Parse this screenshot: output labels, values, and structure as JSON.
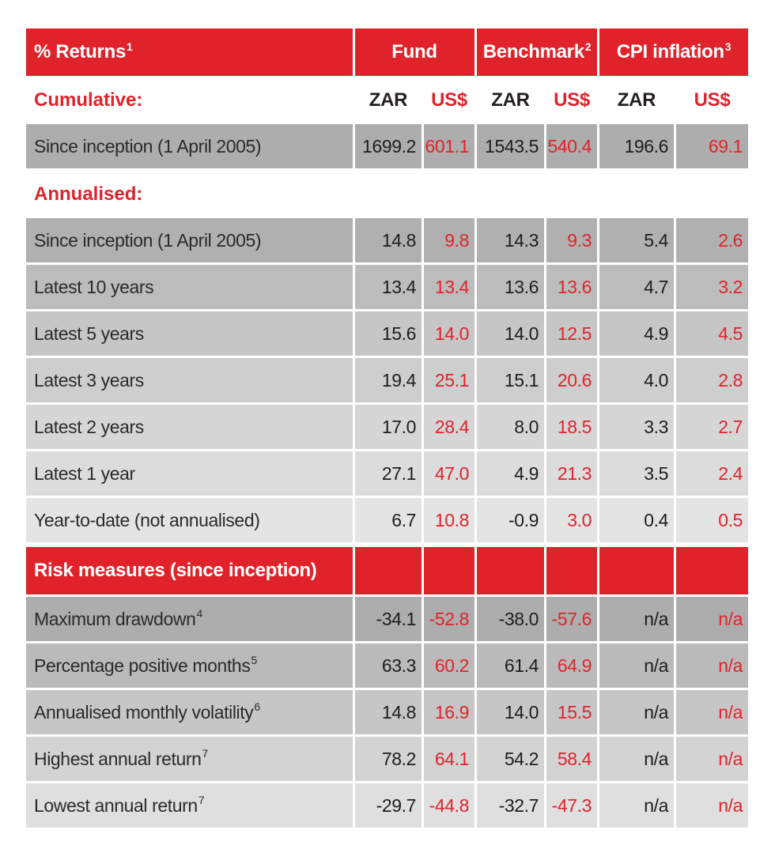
{
  "colors": {
    "accent_red": "#e0232b",
    "text_dark": "#231f20",
    "row_darkest": "#adadad",
    "row_lightest": "#e4e4e4"
  },
  "header": {
    "returns": {
      "text": "% Returns",
      "sup": "1"
    },
    "groups": [
      {
        "text": "Fund",
        "sup": ""
      },
      {
        "text": "Benchmark",
        "sup": "2"
      },
      {
        "text": "CPI inflation",
        "sup": "3"
      }
    ]
  },
  "sections": {
    "cumulative_label": "Cumulative:",
    "annualised_label": "Annualised:",
    "risk_label": "Risk measures (since inception)"
  },
  "currency_headers": [
    "ZAR",
    "US$",
    "ZAR",
    "US$",
    "ZAR",
    "US$"
  ],
  "rows": [
    {
      "label": "Since inception (1 April 2005)",
      "sup": "",
      "bg": "#adadad",
      "values": [
        "1699.2",
        "601.1",
        "1543.5",
        "540.4",
        "196.6",
        "69.1"
      ]
    },
    {
      "label": "Since inception (1 April 2005)",
      "sup": "",
      "bg": "#b0b0b0",
      "values": [
        "14.8",
        "9.8",
        "14.3",
        "9.3",
        "5.4",
        "2.6"
      ]
    },
    {
      "label": "Latest 10 years",
      "sup": "",
      "bg": "#bcbcbc",
      "values": [
        "13.4",
        "13.4",
        "13.6",
        "13.6",
        "4.7",
        "3.2"
      ]
    },
    {
      "label": "Latest 5 years",
      "sup": "",
      "bg": "#c6c6c6",
      "values": [
        "15.6",
        "14.0",
        "14.0",
        "12.5",
        "4.9",
        "4.5"
      ]
    },
    {
      "label": "Latest 3 years",
      "sup": "",
      "bg": "#cecece",
      "values": [
        "19.4",
        "25.1",
        "15.1",
        "20.6",
        "4.0",
        "2.8"
      ]
    },
    {
      "label": "Latest 2 years",
      "sup": "",
      "bg": "#d6d6d6",
      "values": [
        "17.0",
        "28.4",
        "8.0",
        "18.5",
        "3.3",
        "2.7"
      ]
    },
    {
      "label": "Latest 1 year",
      "sup": "",
      "bg": "#dcdcdc",
      "values": [
        "27.1",
        "47.0",
        "4.9",
        "21.3",
        "3.5",
        "2.4"
      ]
    },
    {
      "label": "Year-to-date (not annualised)",
      "sup": "",
      "bg": "#e4e4e4",
      "values": [
        "6.7",
        "10.8",
        "-0.9",
        "3.0",
        "0.4",
        "0.5"
      ]
    },
    {
      "label": "Maximum drawdown",
      "sup": "4",
      "bg": "#adadad",
      "values": [
        "-34.1",
        "-52.8",
        "-38.0",
        "-57.6",
        "n/a",
        "n/a"
      ]
    },
    {
      "label": "Percentage positive months",
      "sup": "5",
      "bg": "#bababa",
      "values": [
        "63.3",
        "60.2",
        "61.4",
        "64.9",
        "n/a",
        "n/a"
      ]
    },
    {
      "label": "Annualised monthly volatility",
      "sup": "6",
      "bg": "#c6c6c6",
      "values": [
        "14.8",
        "16.9",
        "14.0",
        "15.5",
        "n/a",
        "n/a"
      ]
    },
    {
      "label": "Highest annual return",
      "sup": "7",
      "bg": "#d3d3d3",
      "values": [
        "78.2",
        "64.1",
        "54.2",
        "58.4",
        "n/a",
        "n/a"
      ]
    },
    {
      "label": "Lowest annual return",
      "sup": "7",
      "bg": "#dfdfdf",
      "values": [
        "-29.7",
        "-44.8",
        "-32.7",
        "-47.3",
        "n/a",
        "n/a"
      ]
    }
  ]
}
